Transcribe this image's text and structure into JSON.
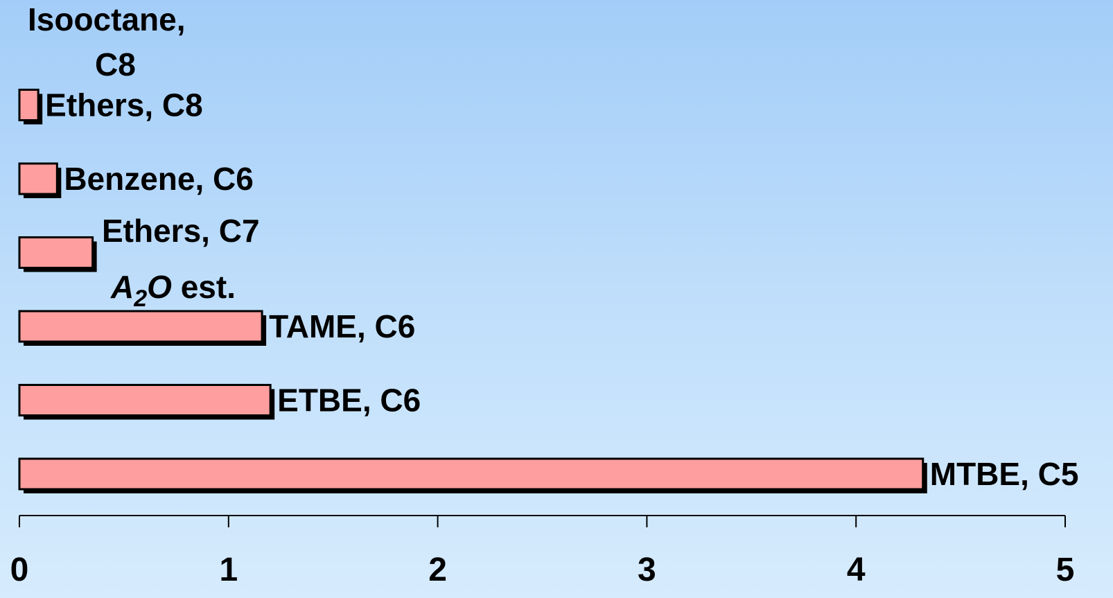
{
  "chart_data": {
    "type": "bar",
    "orientation": "horizontal",
    "title": "",
    "xlabel": "",
    "ylabel": "",
    "xlim": [
      0,
      5
    ],
    "ticks": [
      "0",
      "1",
      "2",
      "3",
      "4",
      "5"
    ],
    "grid": false,
    "legend": "none",
    "bar_color": "#ff9e9e",
    "bar_border_color": "#000000",
    "categories": [
      {
        "lines": [
          "Isooctane,",
          "C8"
        ],
        "value": 0
      },
      {
        "lines": [
          "Ethers, C8"
        ],
        "value": 0.09
      },
      {
        "lines": [
          "Benzene, C6"
        ],
        "value": 0.18
      },
      {
        "lines": [
          "Ethers, C7"
        ],
        "value": 0.35,
        "annotation": {
          "a": "A",
          "sub": "2",
          "o": "O",
          "rest": " est."
        }
      },
      {
        "lines": [
          "TAME, C6"
        ],
        "value": 1.16
      },
      {
        "lines": [
          "ETBE, C6"
        ],
        "value": 1.2
      },
      {
        "lines": [
          "MTBE, C5"
        ],
        "value": 4.32
      }
    ]
  }
}
